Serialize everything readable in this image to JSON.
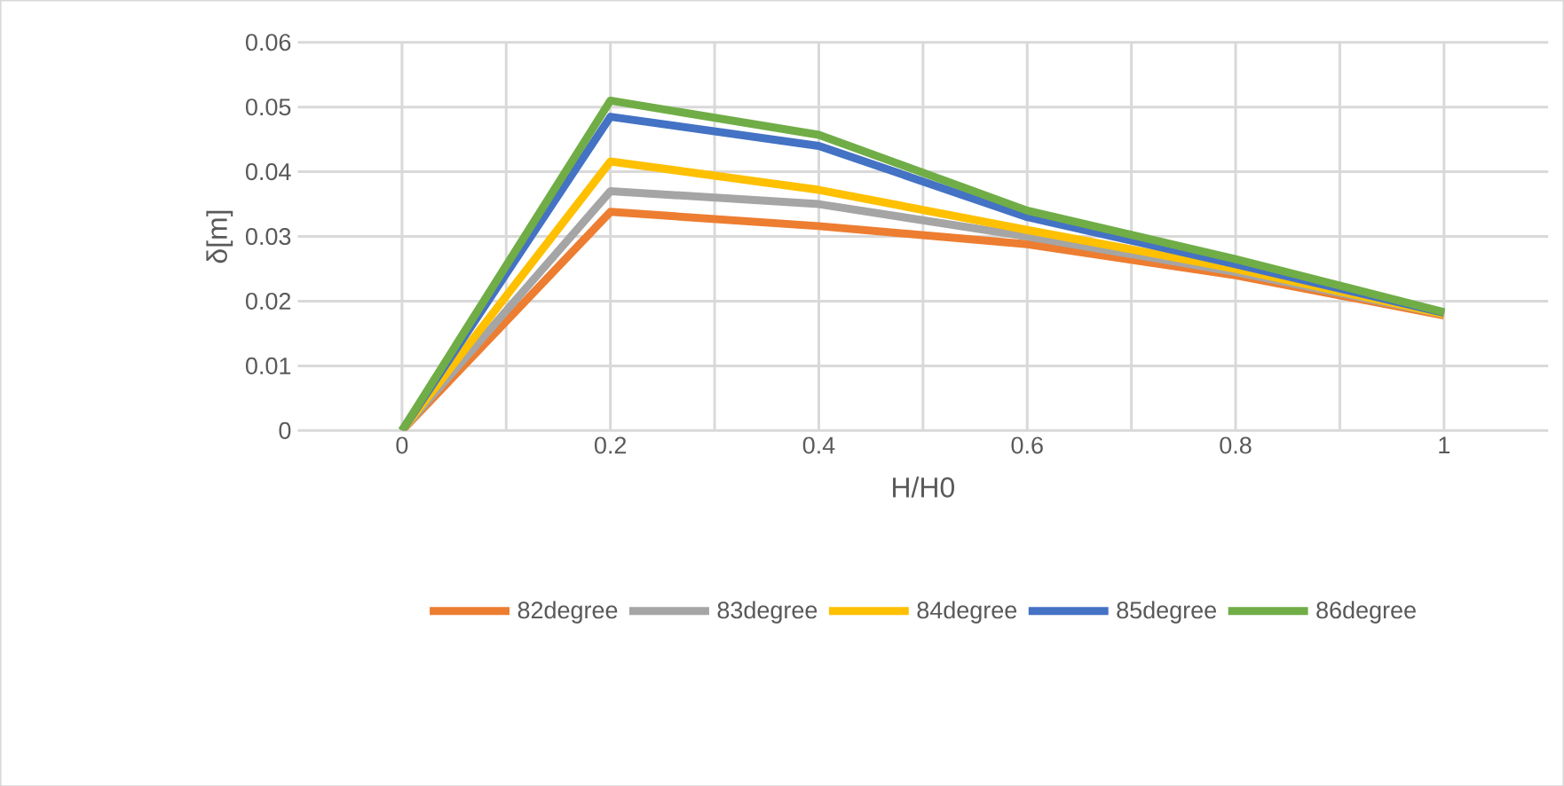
{
  "chart_data": {
    "type": "line",
    "xlabel": "H/H0",
    "ylabel": "δ[m]",
    "categories": [
      "0",
      "0.2",
      "0.4",
      "0.6",
      "0.8",
      "1"
    ],
    "ylim": [
      0,
      0.06
    ],
    "yticks": [
      0,
      0.01,
      0.02,
      0.03,
      0.04,
      0.05,
      0.06
    ],
    "grid": true,
    "legend": "bottom",
    "marker": "none",
    "line_style": "solid",
    "series": [
      {
        "name": "82degree",
        "color": "#ed7d31",
        "values": [
          0,
          0.0338,
          0.0316,
          0.0288,
          0.024,
          0.0178
        ]
      },
      {
        "name": "83degree",
        "color": "#a5a5a5",
        "values": [
          0,
          0.037,
          0.035,
          0.03,
          0.0245,
          0.018
        ]
      },
      {
        "name": "84degree",
        "color": "#ffc000",
        "values": [
          0,
          0.0416,
          0.0372,
          0.031,
          0.025,
          0.018
        ]
      },
      {
        "name": "85degree",
        "color": "#4472c4",
        "values": [
          0,
          0.0485,
          0.044,
          0.033,
          0.0257,
          0.0182
        ]
      },
      {
        "name": "86degree",
        "color": "#70ad47",
        "values": [
          0,
          0.051,
          0.0457,
          0.034,
          0.0265,
          0.0183
        ]
      }
    ]
  }
}
